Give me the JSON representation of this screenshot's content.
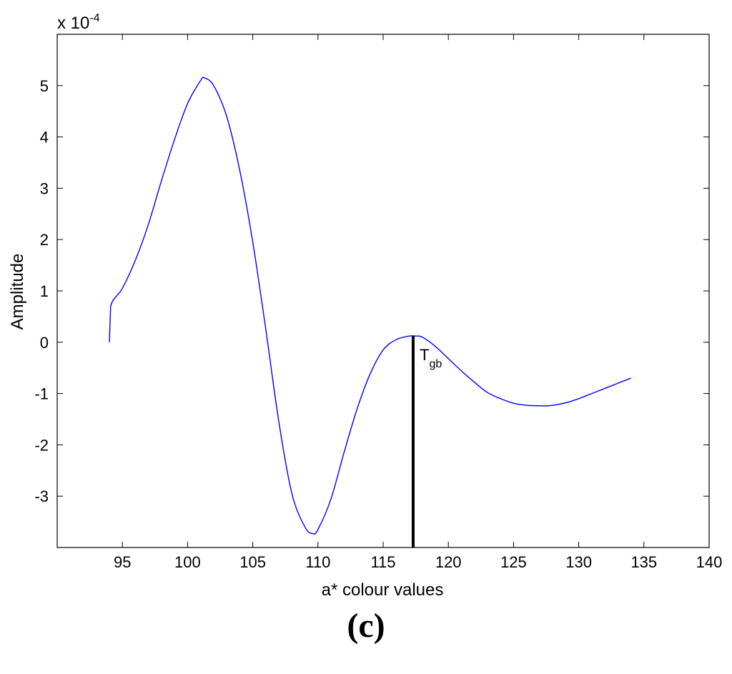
{
  "chart_data": {
    "type": "line",
    "xlabel": "a* colour values",
    "ylabel": "Amplitude",
    "y_multiplier_label": "x 10",
    "y_multiplier_exponent": "-4",
    "xlim": [
      90,
      140
    ],
    "ylim": [
      -4,
      6
    ],
    "xticks": [
      95,
      100,
      105,
      110,
      115,
      120,
      125,
      130,
      135,
      140
    ],
    "yticks": [
      -3,
      -2,
      -1,
      0,
      1,
      2,
      3,
      4,
      5
    ],
    "grid": false,
    "series": [
      {
        "color": "#0000ff",
        "x": [
          94,
          94.1,
          95,
          96,
          97,
          98,
          99,
          100,
          101,
          101.3,
          102,
          103,
          104,
          105,
          106,
          107,
          108,
          109,
          109.6,
          110,
          111,
          112,
          113,
          114,
          115,
          116,
          117,
          117.5,
          118,
          119,
          120,
          121,
          122,
          123,
          124,
          125,
          126,
          127,
          127.5,
          128,
          129,
          130,
          131,
          132,
          133,
          134
        ],
        "y": [
          0,
          0.7,
          1.05,
          1.6,
          2.3,
          3.15,
          3.95,
          4.65,
          5.1,
          5.15,
          5.0,
          4.4,
          3.35,
          1.95,
          0.25,
          -1.55,
          -2.95,
          -3.6,
          -3.73,
          -3.65,
          -3.05,
          -2.15,
          -1.3,
          -0.62,
          -0.15,
          0.05,
          0.12,
          0.12,
          0.1,
          -0.08,
          -0.32,
          -0.56,
          -0.78,
          -0.98,
          -1.1,
          -1.19,
          -1.23,
          -1.24,
          -1.24,
          -1.23,
          -1.18,
          -1.1,
          -1.0,
          -0.9,
          -0.8,
          -0.7
        ]
      }
    ],
    "annotations": [
      {
        "type": "vline",
        "x": 117.3,
        "y_from": -4,
        "y_to": 0.12,
        "color": "#000000"
      },
      {
        "type": "text",
        "label": "T",
        "subscript": "gb",
        "x": 117.8,
        "y": -0.35
      }
    ]
  },
  "panel_label": "(c)"
}
